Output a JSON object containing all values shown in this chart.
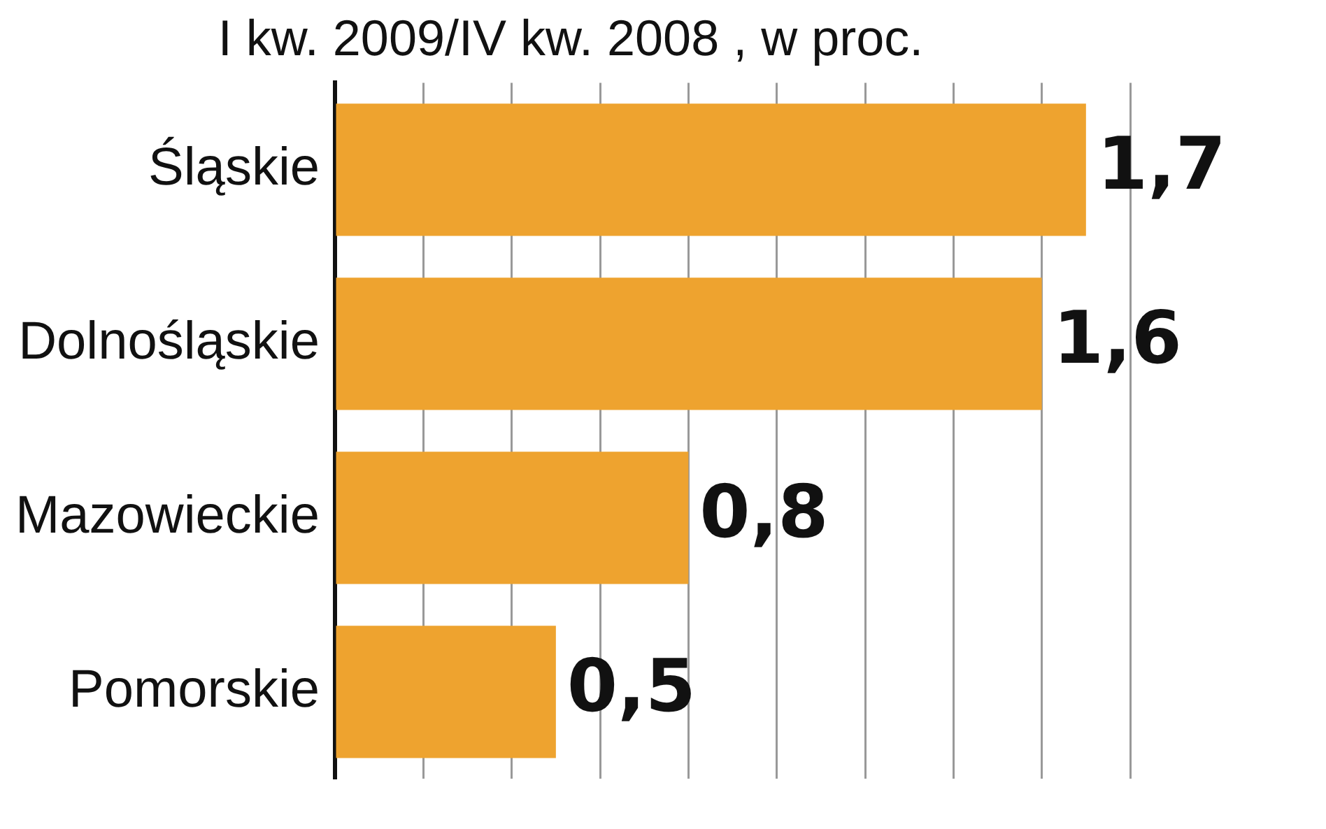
{
  "chart_data": {
    "type": "bar",
    "orientation": "horizontal",
    "title": "I kw. 2009/IV kw. 2008 , w proc.",
    "categories": [
      "Śląskie",
      "Dolnośląskie",
      "Mazowieckie",
      "Pomorskie"
    ],
    "values": [
      1.7,
      1.6,
      0.8,
      0.5
    ],
    "value_labels": [
      "1,7",
      "1,6",
      "0,8",
      "0,5"
    ],
    "color": "#eea32f",
    "tick_labels": "y",
    "grid": "x",
    "legend": false
  }
}
